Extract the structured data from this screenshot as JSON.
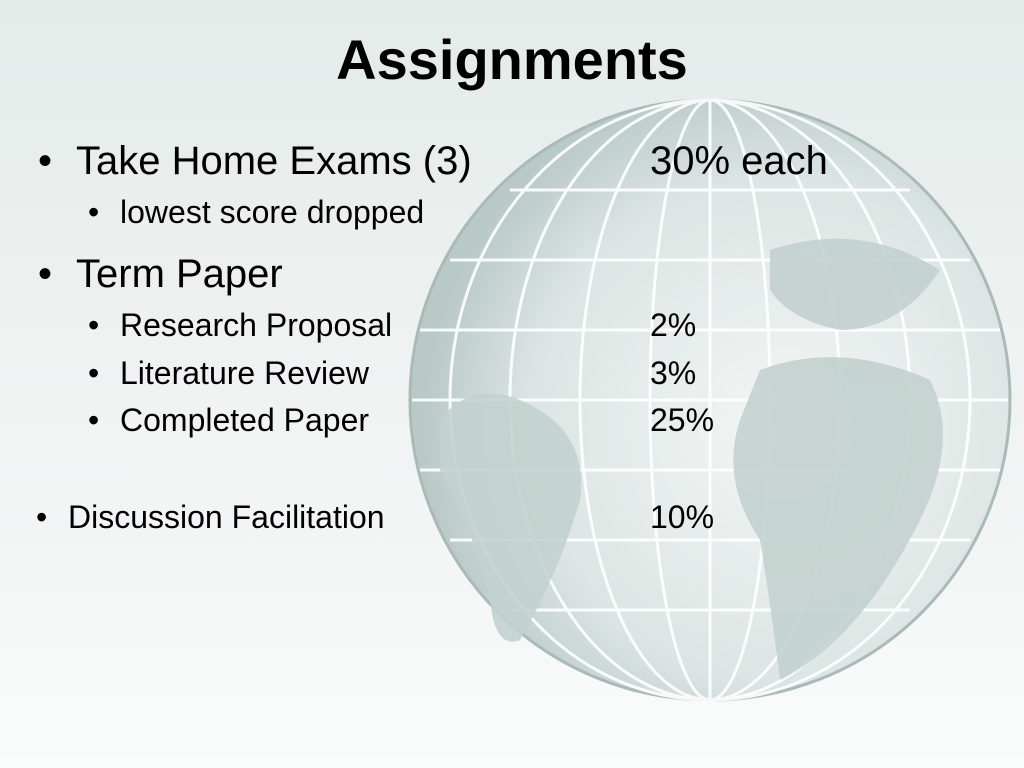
{
  "title": "Assignments",
  "items": [
    {
      "label": "Take Home Exams (3)",
      "value": "30% each",
      "level": 1
    },
    {
      "label": "lowest score dropped",
      "value": "",
      "level": 2
    },
    {
      "label": "Term Paper",
      "value": "",
      "level": 1
    },
    {
      "label": "Research Proposal",
      "value": "2%",
      "level": 2
    },
    {
      "label": "Literature Review",
      "value": "3%",
      "level": 2
    },
    {
      "label": "Completed Paper",
      "value": "25%",
      "level": 2
    },
    {
      "label": "Discussion Facilitation",
      "value": "10%",
      "level": 1
    }
  ],
  "bullet": "•",
  "colors": {
    "background": "#e8eeec",
    "globe": "#c9d6d3",
    "text": "#000000"
  }
}
